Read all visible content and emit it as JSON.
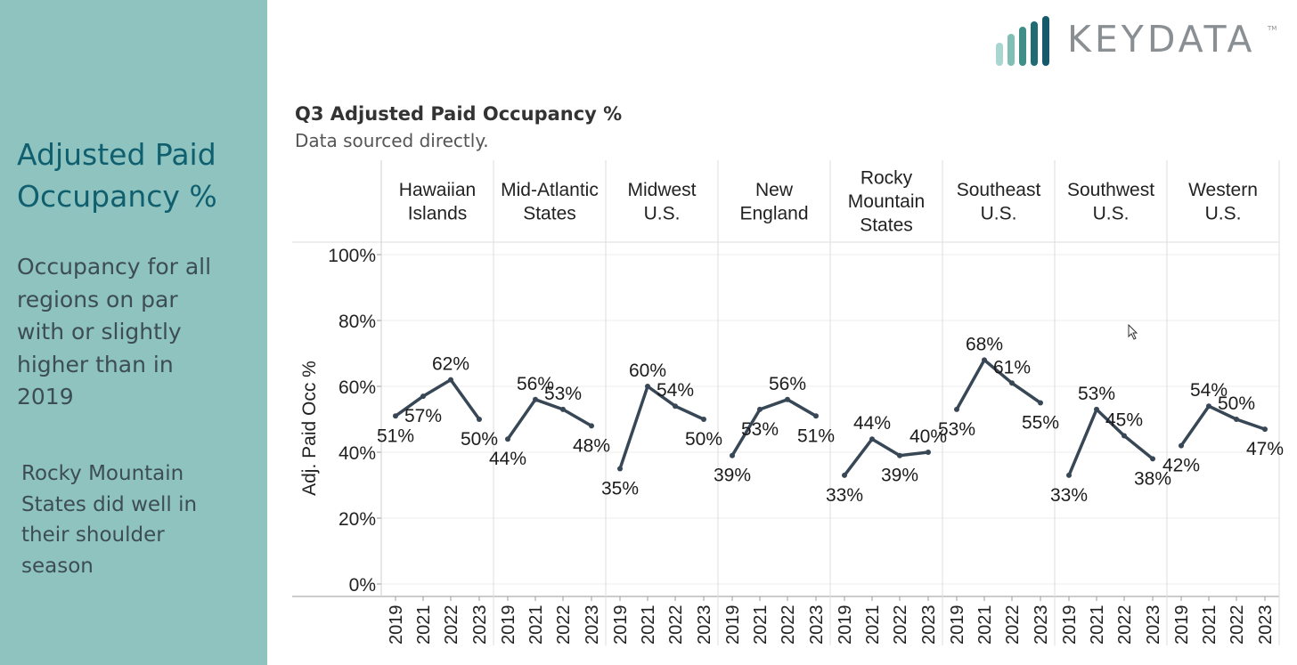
{
  "sidebar": {
    "title_line1": "Adjusted Paid",
    "title_line2": "Occupancy %",
    "paragraph1_lines": [
      "Occupancy for all",
      "regions on par",
      "with or slightly",
      "higher than in",
      "2019"
    ],
    "paragraph2_lines": [
      "Rocky Mountain",
      "States did well in",
      "their shoulder",
      "season"
    ]
  },
  "logo": {
    "text": "KEYDATA",
    "tm": "TM"
  },
  "colors": {
    "sidebar_bg": "#8ec3c0",
    "title": "#0f5f6e",
    "line": "#384756"
  },
  "chart_data": {
    "type": "line",
    "title": "Q3 Adjusted Paid Occupancy %",
    "subtitle": "Data sourced directly.",
    "ylabel": "Adj. Paid Occ %",
    "ylim": [
      0,
      100
    ],
    "yticks": [
      "0%",
      "20%",
      "40%",
      "60%",
      "80%",
      "100%"
    ],
    "ytick_values": [
      0,
      20,
      40,
      60,
      80,
      100
    ],
    "years": [
      "2019",
      "2021",
      "2022",
      "2023"
    ],
    "panels": [
      {
        "name": [
          "Hawaiian",
          "Islands"
        ],
        "values": [
          51,
          57,
          62,
          50
        ],
        "labels": [
          "51%",
          "57%",
          "62%",
          "50%"
        ]
      },
      {
        "name": [
          "Mid-Atlantic",
          "States"
        ],
        "values": [
          44,
          56,
          53,
          48
        ],
        "labels": [
          "44%",
          "56%",
          "53%",
          "48%"
        ]
      },
      {
        "name": [
          "Midwest",
          "U.S."
        ],
        "values": [
          35,
          60,
          54,
          50
        ],
        "labels": [
          "35%",
          "60%",
          "54%",
          "50%"
        ]
      },
      {
        "name": [
          "New",
          "England"
        ],
        "values": [
          39,
          53,
          56,
          51
        ],
        "labels": [
          "39%",
          "53%",
          "56%",
          "51%"
        ]
      },
      {
        "name": [
          "Rocky",
          "Mountain",
          "States"
        ],
        "values": [
          33,
          44,
          39,
          40
        ],
        "labels": [
          "33%",
          "44%",
          "39%",
          "40%"
        ]
      },
      {
        "name": [
          "Southeast",
          "U.S."
        ],
        "values": [
          53,
          68,
          61,
          55
        ],
        "labels": [
          "53%",
          "68%",
          "61%",
          "55%"
        ]
      },
      {
        "name": [
          "Southwest",
          "U.S."
        ],
        "values": [
          33,
          53,
          45,
          38
        ],
        "labels": [
          "33%",
          "53%",
          "45%",
          "38%"
        ]
      },
      {
        "name": [
          "Western",
          "U.S."
        ],
        "values": [
          42,
          54,
          50,
          47
        ],
        "labels": [
          "42%",
          "54%",
          "50%",
          "47%"
        ]
      }
    ]
  }
}
